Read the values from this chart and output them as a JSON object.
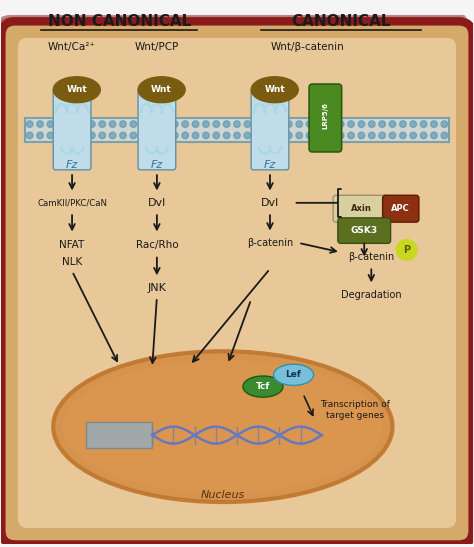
{
  "title_non_canonical": "NON CANONICAL",
  "title_canonical": "CANONICAL",
  "subtitle_1": "Wnt/Ca²⁺",
  "subtitle_2": "Wnt/PCP",
  "subtitle_3": "Wnt/β-catenin",
  "bg_color": "#f5f5f5",
  "cell_outer_color": "#8b1a1a",
  "cell_inner_color": "#d4a96a",
  "cell_inner_light": "#e8c898",
  "membrane_color": "#c8e8f0",
  "wnt_color": "#7a5c10",
  "lrp_color": "#4a8a20",
  "nucleus_outer": "#c07830",
  "nucleus_inner": "#d4904a",
  "dna_color": "#6878c0",
  "dna_block_color": "#a0a8a8",
  "axin_color": "#d8d0a0",
  "apc_color": "#8b3010",
  "gsk3_color": "#5a7020",
  "tcf_color": "#3a8a30",
  "lef_color": "#78c0d8",
  "p_color": "#c8d820",
  "arrow_color": "#1a1a1a",
  "text_color": "#1a1a1a",
  "figsize": [
    4.74,
    5.47
  ],
  "dpi": 100
}
